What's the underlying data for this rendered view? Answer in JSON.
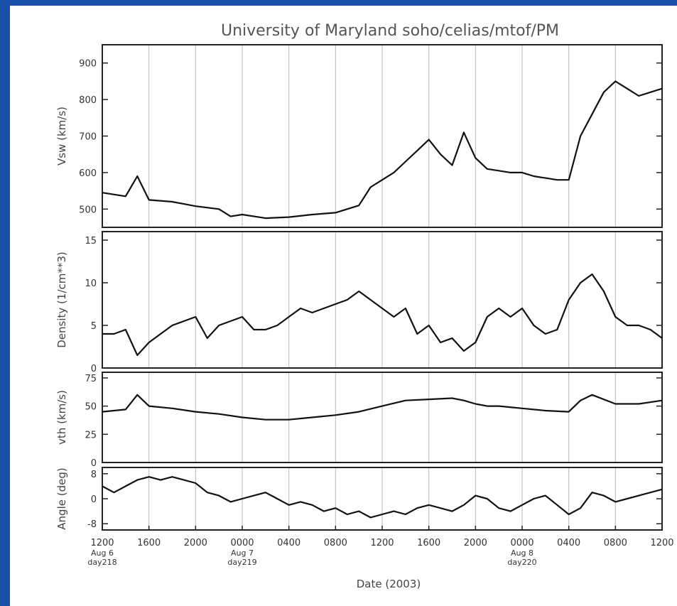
{
  "chart_data": {
    "type": "line",
    "title": "University of Maryland  soho/celias/mtof/PM",
    "xlabel": "Date (2003)",
    "x_ticks": [
      "1200",
      "1600",
      "2000",
      "0000",
      "0400",
      "0800",
      "1200",
      "1600",
      "2000",
      "0000",
      "0400",
      "0800",
      "1200"
    ],
    "x_tick_sublabels": [
      {
        "tick_index": 0,
        "lines": [
          "Aug 6",
          "day218"
        ]
      },
      {
        "tick_index": 3,
        "lines": [
          "Aug 7",
          "day219"
        ]
      },
      {
        "tick_index": 9,
        "lines": [
          "Aug 8",
          "day220"
        ]
      }
    ],
    "x_range_hours": [
      0,
      48
    ],
    "grid": "vertical",
    "panels": [
      {
        "id": "vsw",
        "ylabel": "Vsw (km/s)",
        "ylim": [
          450,
          950
        ],
        "yticks": [
          500,
          600,
          700,
          800,
          900
        ],
        "series": {
          "x": [
            0,
            2,
            3,
            4,
            6,
            8,
            10,
            11,
            12,
            14,
            16,
            18,
            20,
            22,
            23,
            24,
            25,
            26,
            27,
            28,
            29,
            30,
            31,
            32,
            33,
            34,
            35,
            36,
            37,
            38,
            39,
            40,
            41,
            42,
            43,
            44,
            45,
            46,
            47,
            48
          ],
          "values": [
            545,
            535,
            590,
            525,
            520,
            508,
            500,
            480,
            485,
            475,
            478,
            485,
            490,
            510,
            560,
            580,
            600,
            630,
            660,
            690,
            650,
            620,
            710,
            640,
            610,
            605,
            600,
            600,
            590,
            585,
            580,
            580,
            700,
            760,
            820,
            850,
            830,
            810,
            820,
            830
          ]
        }
      },
      {
        "id": "density",
        "ylabel": "Density (1/cm**3)",
        "ylim": [
          0,
          16
        ],
        "yticks": [
          0,
          5,
          10,
          15
        ],
        "series": {
          "x": [
            0,
            1,
            2,
            3,
            4,
            5,
            6,
            7,
            8,
            9,
            10,
            11,
            12,
            13,
            14,
            15,
            16,
            17,
            18,
            19,
            20,
            21,
            22,
            23,
            24,
            25,
            26,
            27,
            28,
            29,
            30,
            31,
            32,
            33,
            34,
            35,
            36,
            37,
            38,
            39,
            40,
            41,
            42,
            43,
            44,
            45,
            46,
            47,
            48
          ],
          "values": [
            4,
            4,
            4.5,
            1.5,
            3,
            4,
            5,
            5.5,
            6,
            3.5,
            5,
            5.5,
            6,
            4.5,
            4.5,
            5,
            6,
            7,
            6.5,
            7,
            7.5,
            8,
            9,
            8,
            7,
            6,
            7,
            4,
            5,
            3,
            3.5,
            2,
            3,
            6,
            7,
            6,
            7,
            5,
            4,
            4.5,
            8,
            10,
            11,
            9,
            6,
            5,
            5,
            4.5,
            3.5
          ]
        }
      },
      {
        "id": "vth",
        "ylabel": "vth (km/s)",
        "ylim": [
          0,
          80
        ],
        "yticks": [
          0,
          25,
          50,
          75
        ],
        "series": {
          "x": [
            0,
            2,
            3,
            4,
            6,
            8,
            10,
            12,
            14,
            16,
            18,
            20,
            22,
            24,
            26,
            28,
            30,
            31,
            32,
            33,
            34,
            36,
            38,
            40,
            41,
            42,
            44,
            46,
            48
          ],
          "values": [
            45,
            47,
            60,
            50,
            48,
            45,
            43,
            40,
            38,
            38,
            40,
            42,
            45,
            50,
            55,
            56,
            57,
            55,
            52,
            50,
            50,
            48,
            46,
            45,
            55,
            60,
            52,
            52,
            55
          ]
        }
      },
      {
        "id": "angle",
        "ylabel": "Angle (deg)",
        "ylim": [
          -10,
          10
        ],
        "yticks": [
          -8,
          0,
          8
        ],
        "series": {
          "x": [
            0,
            1,
            2,
            3,
            4,
            5,
            6,
            7,
            8,
            9,
            10,
            11,
            12,
            13,
            14,
            15,
            16,
            17,
            18,
            19,
            20,
            21,
            22,
            23,
            24,
            25,
            26,
            27,
            28,
            29,
            30,
            31,
            32,
            33,
            34,
            35,
            36,
            37,
            38,
            39,
            40,
            41,
            42,
            43,
            44,
            45,
            46,
            47,
            48
          ],
          "values": [
            4,
            2,
            4,
            6,
            7,
            6,
            7,
            6,
            5,
            2,
            1,
            -1,
            0,
            1,
            2,
            0,
            -2,
            -1,
            -2,
            -4,
            -3,
            -5,
            -4,
            -6,
            -5,
            -4,
            -5,
            -3,
            -2,
            -3,
            -4,
            -2,
            1,
            0,
            -3,
            -4,
            -2,
            0,
            1,
            -2,
            -5,
            -3,
            2,
            1,
            -1,
            0,
            1,
            2,
            3
          ]
        }
      }
    ]
  }
}
